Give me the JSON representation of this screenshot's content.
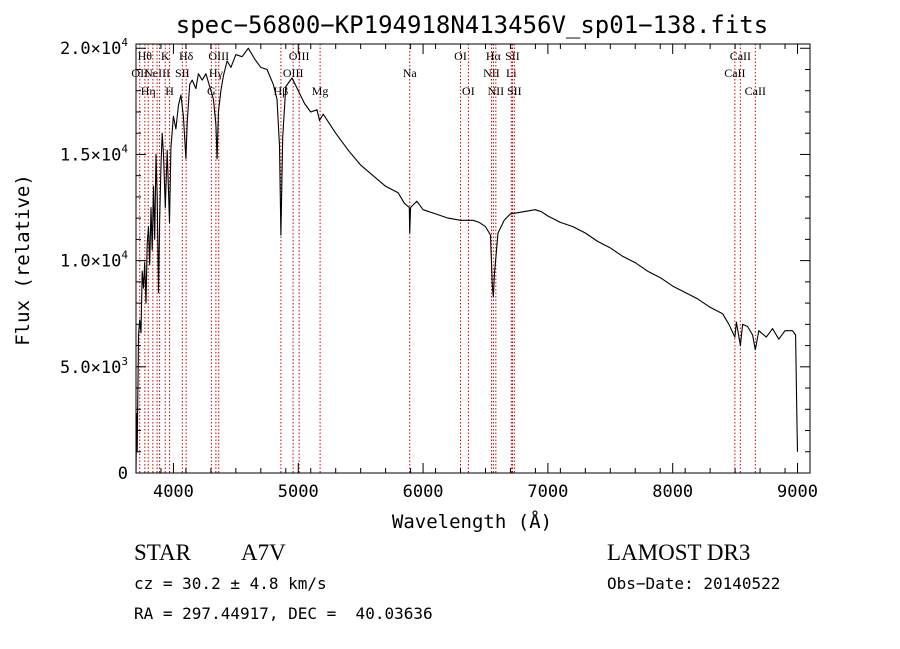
{
  "chart_data": {
    "type": "line",
    "title": "spec−56800−KP194918N413456V_sp01−138.fits",
    "xlabel": "Wavelength (Å)",
    "ylabel": "Flux (relative)",
    "xlim": [
      3700,
      9100
    ],
    "ylim": [
      0,
      20200
    ],
    "x_ticks": [
      {
        "value": 4000,
        "label": "4000"
      },
      {
        "value": 5000,
        "label": "5000"
      },
      {
        "value": 6000,
        "label": "6000"
      },
      {
        "value": 7000,
        "label": "7000"
      },
      {
        "value": 8000,
        "label": "8000"
      },
      {
        "value": 9000,
        "label": "9000"
      }
    ],
    "y_ticks": [
      {
        "value": 0,
        "mantissa": "0",
        "exp": ""
      },
      {
        "value": 5000,
        "mantissa": "5.0×10",
        "exp": "3"
      },
      {
        "value": 10000,
        "mantissa": "1.0×10",
        "exp": "4"
      },
      {
        "value": 15000,
        "mantissa": "1.5×10",
        "exp": "4"
      },
      {
        "value": 20000,
        "mantissa": "2.0×10",
        "exp": "4"
      }
    ],
    "series": [
      {
        "name": "flux",
        "points": [
          [
            3700,
            0
          ],
          [
            3705,
            2800
          ],
          [
            3710,
            1000
          ],
          [
            3720,
            6500
          ],
          [
            3730,
            7200
          ],
          [
            3740,
            6600
          ],
          [
            3750,
            9500
          ],
          [
            3760,
            8700
          ],
          [
            3770,
            9900
          ],
          [
            3780,
            8000
          ],
          [
            3790,
            10800
          ],
          [
            3800,
            11600
          ],
          [
            3810,
            9800
          ],
          [
            3820,
            12500
          ],
          [
            3830,
            10500
          ],
          [
            3840,
            13500
          ],
          [
            3850,
            11000
          ],
          [
            3860,
            15000
          ],
          [
            3870,
            13000
          ],
          [
            3880,
            8500
          ],
          [
            3890,
            12000
          ],
          [
            3900,
            14500
          ],
          [
            3910,
            16000
          ],
          [
            3920,
            15000
          ],
          [
            3935,
            12500
          ],
          [
            3950,
            15200
          ],
          [
            3968,
            11800
          ],
          [
            3980,
            15300
          ],
          [
            4000,
            16800
          ],
          [
            4020,
            16200
          ],
          [
            4040,
            17300
          ],
          [
            4060,
            17800
          ],
          [
            4080,
            16800
          ],
          [
            4100,
            14800
          ],
          [
            4110,
            16500
          ],
          [
            4130,
            18300
          ],
          [
            4150,
            18500
          ],
          [
            4180,
            18100
          ],
          [
            4200,
            18800
          ],
          [
            4230,
            18500
          ],
          [
            4260,
            18800
          ],
          [
            4300,
            18000
          ],
          [
            4320,
            17600
          ],
          [
            4340,
            16400
          ],
          [
            4350,
            14800
          ],
          [
            4360,
            17000
          ],
          [
            4380,
            18000
          ],
          [
            4400,
            18700
          ],
          [
            4430,
            19400
          ],
          [
            4460,
            19100
          ],
          [
            4500,
            19700
          ],
          [
            4550,
            19600
          ],
          [
            4600,
            20000
          ],
          [
            4650,
            19500
          ],
          [
            4700,
            19100
          ],
          [
            4750,
            19000
          ],
          [
            4800,
            18300
          ],
          [
            4830,
            17600
          ],
          [
            4850,
            15400
          ],
          [
            4861,
            11200
          ],
          [
            4875,
            15800
          ],
          [
            4900,
            18200
          ],
          [
            4950,
            18600
          ],
          [
            5000,
            18000
          ],
          [
            5050,
            17400
          ],
          [
            5100,
            17000
          ],
          [
            5150,
            17100
          ],
          [
            5170,
            16600
          ],
          [
            5200,
            16900
          ],
          [
            5300,
            16000
          ],
          [
            5400,
            15200
          ],
          [
            5500,
            14500
          ],
          [
            5600,
            14000
          ],
          [
            5700,
            13500
          ],
          [
            5800,
            13200
          ],
          [
            5850,
            12700
          ],
          [
            5890,
            12500
          ],
          [
            5893,
            11300
          ],
          [
            5900,
            12500
          ],
          [
            5950,
            12800
          ],
          [
            6000,
            12400
          ],
          [
            6100,
            12200
          ],
          [
            6200,
            12000
          ],
          [
            6300,
            11900
          ],
          [
            6350,
            11900
          ],
          [
            6400,
            11900
          ],
          [
            6450,
            11800
          ],
          [
            6500,
            11600
          ],
          [
            6540,
            11200
          ],
          [
            6555,
            8800
          ],
          [
            6563,
            8300
          ],
          [
            6572,
            9400
          ],
          [
            6600,
            11300
          ],
          [
            6650,
            11900
          ],
          [
            6700,
            12200
          ],
          [
            6800,
            12300
          ],
          [
            6900,
            12400
          ],
          [
            6950,
            12300
          ],
          [
            7000,
            12100
          ],
          [
            7100,
            11800
          ],
          [
            7200,
            11600
          ],
          [
            7300,
            11300
          ],
          [
            7400,
            10900
          ],
          [
            7500,
            10600
          ],
          [
            7600,
            10200
          ],
          [
            7700,
            9900
          ],
          [
            7800,
            9500
          ],
          [
            7900,
            9200
          ],
          [
            8000,
            8800
          ],
          [
            8100,
            8500
          ],
          [
            8200,
            8200
          ],
          [
            8300,
            7800
          ],
          [
            8400,
            7500
          ],
          [
            8450,
            7000
          ],
          [
            8498,
            6400
          ],
          [
            8510,
            7100
          ],
          [
            8542,
            6000
          ],
          [
            8560,
            7000
          ],
          [
            8600,
            6900
          ],
          [
            8640,
            6500
          ],
          [
            8662,
            5800
          ],
          [
            8690,
            6700
          ],
          [
            8750,
            6400
          ],
          [
            8800,
            6800
          ],
          [
            8850,
            6300
          ],
          [
            8900,
            6700
          ],
          [
            8960,
            6700
          ],
          [
            8985,
            6500
          ],
          [
            8995,
            2500
          ],
          [
            9000,
            1000
          ]
        ]
      }
    ],
    "line_markers": [
      {
        "wl": 3730,
        "label": "OII",
        "row": 2
      },
      {
        "wl": 3771,
        "label": "Hθ",
        "row": 1
      },
      {
        "wl": 3798,
        "label": "Hη",
        "row": 3
      },
      {
        "wl": 3835,
        "label": "",
        "row": 0
      },
      {
        "wl": 3869,
        "label": "NeIII",
        "row": 2
      },
      {
        "wl": 3889,
        "label": "",
        "row": 0
      },
      {
        "wl": 3934,
        "label": "K",
        "row": 1
      },
      {
        "wl": 3969,
        "label": "H",
        "row": 3
      },
      {
        "wl": 4071,
        "label": "SII",
        "row": 2
      },
      {
        "wl": 4102,
        "label": "Hδ",
        "row": 1
      },
      {
        "wl": 4304,
        "label": "G",
        "row": 3
      },
      {
        "wl": 4340,
        "label": "Hγ",
        "row": 2
      },
      {
        "wl": 4363,
        "label": "OIII",
        "row": 1
      },
      {
        "wl": 4861,
        "label": "Hβ",
        "row": 3
      },
      {
        "wl": 4959,
        "label": "OIII",
        "row": 2
      },
      {
        "wl": 5007,
        "label": "OIII",
        "row": 1
      },
      {
        "wl": 5175,
        "label": "Mg",
        "row": 3
      },
      {
        "wl": 5893,
        "label": "Na",
        "row": 2
      },
      {
        "wl": 6300,
        "label": "OI",
        "row": 1
      },
      {
        "wl": 6363,
        "label": "OI",
        "row": 3
      },
      {
        "wl": 6548,
        "label": "NII",
        "row": 2
      },
      {
        "wl": 6563,
        "label": "Hα",
        "row": 1
      },
      {
        "wl": 6583,
        "label": "NII",
        "row": 3
      },
      {
        "wl": 6707,
        "label": "Li",
        "row": 2
      },
      {
        "wl": 6716,
        "label": "SII",
        "row": 1
      },
      {
        "wl": 6731,
        "label": "SII",
        "row": 3
      },
      {
        "wl": 8498,
        "label": "CaII",
        "row": 2
      },
      {
        "wl": 8542,
        "label": "CaII",
        "row": 1
      },
      {
        "wl": 8662,
        "label": "CaII",
        "row": 3
      }
    ],
    "line_marker_color": "#cc0000",
    "series_color": "#000000"
  },
  "info": {
    "class_type": "STAR",
    "subclass": "A7V",
    "survey": "LAMOST DR3",
    "cz": "cz = 30.2 ± 4.8 km/s",
    "obs_date": "Obs−Date: 20140522",
    "coords": "RA = 297.44917, DEC =  40.03636"
  }
}
